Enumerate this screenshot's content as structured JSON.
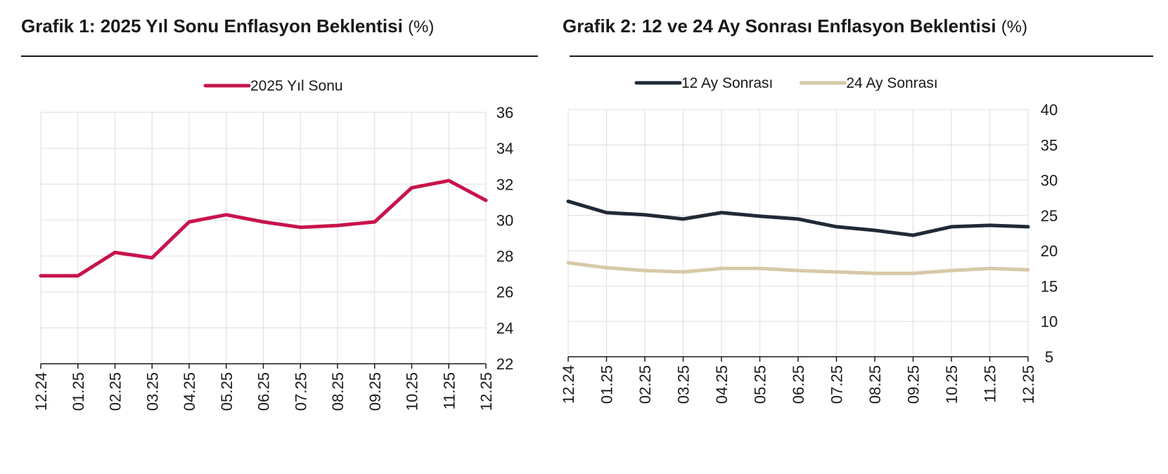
{
  "charts": [
    {
      "title": "Grafik 1: 2025 Yıl Sonu Enflasyon Beklentisi",
      "unit": "(%)"
    },
    {
      "title": "Grafik 2: 12 ve 24 Ay Sonrası Enflasyon Beklentisi",
      "unit": "(%)"
    }
  ],
  "chart_data": [
    {
      "type": "line",
      "title": "Grafik 1: 2025 Yıl Sonu Enflasyon Beklentisi (%)",
      "x": [
        "12.24",
        "01.25",
        "02.25",
        "03.25",
        "04.25",
        "05.25",
        "06.25",
        "07.25",
        "08.25",
        "09.25",
        "10.25",
        "11.25",
        "12.25"
      ],
      "series": [
        {
          "name": "2025 Yıl Sonu",
          "color": "#c8144b",
          "values": [
            26.9,
            26.9,
            28.2,
            27.9,
            29.9,
            30.3,
            29.9,
            29.6,
            29.7,
            29.9,
            31.8,
            32.2,
            31.1
          ]
        }
      ],
      "ylim": [
        22,
        36
      ],
      "yticks": [
        22,
        24,
        26,
        28,
        30,
        32,
        34,
        36
      ],
      "y_axis_side": "right",
      "grid": true,
      "legend": "top-center"
    },
    {
      "type": "line",
      "title": "Grafik 2: 12 ve 24 Ay Sonrası Enflasyon Beklentisi (%)",
      "x": [
        "12.24",
        "01.25",
        "02.25",
        "03.25",
        "04.25",
        "05.25",
        "06.25",
        "07.25",
        "08.25",
        "09.25",
        "10.25",
        "11.25",
        "12.25"
      ],
      "series": [
        {
          "name": "12 Ay Sonrası",
          "color": "#1f2a36",
          "values": [
            27.0,
            25.4,
            25.1,
            24.5,
            25.4,
            24.9,
            24.5,
            23.4,
            22.9,
            22.2,
            23.4,
            23.6,
            23.4
          ]
        },
        {
          "name": "24 Ay Sonrası",
          "color": "#d6c9a8",
          "values": [
            18.3,
            17.6,
            17.2,
            17.0,
            17.5,
            17.5,
            17.2,
            17.0,
            16.8,
            16.8,
            17.2,
            17.5,
            17.3
          ]
        }
      ],
      "ylim": [
        5,
        40
      ],
      "yticks": [
        5,
        10,
        15,
        20,
        25,
        30,
        35,
        40
      ],
      "y_axis_side": "right",
      "grid": true,
      "legend": "top-center"
    }
  ]
}
